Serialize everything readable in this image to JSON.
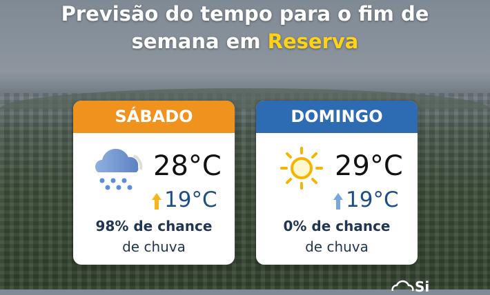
{
  "title": {
    "line1": "Previsão do tempo para o fim de",
    "line2_prefix": "semana em ",
    "city": "Reserva"
  },
  "colors": {
    "saturday_header": "#f0921e",
    "sunday_header": "#2d6bb3",
    "highlight": "#ffd21a",
    "low_temp": "#1d4f86"
  },
  "days": [
    {
      "name": "SÁBADO",
      "icon": "rain-cloud-icon",
      "high": "28°C",
      "low": "19°C",
      "chance": "98% de chance",
      "chance_suffix": "de chuva"
    },
    {
      "name": "DOMINGO",
      "icon": "sun-icon",
      "high": "29°C",
      "low": "19°C",
      "chance": "0% de chance",
      "chance_suffix": "de chuva"
    }
  ],
  "logo": {
    "text": "Si"
  }
}
